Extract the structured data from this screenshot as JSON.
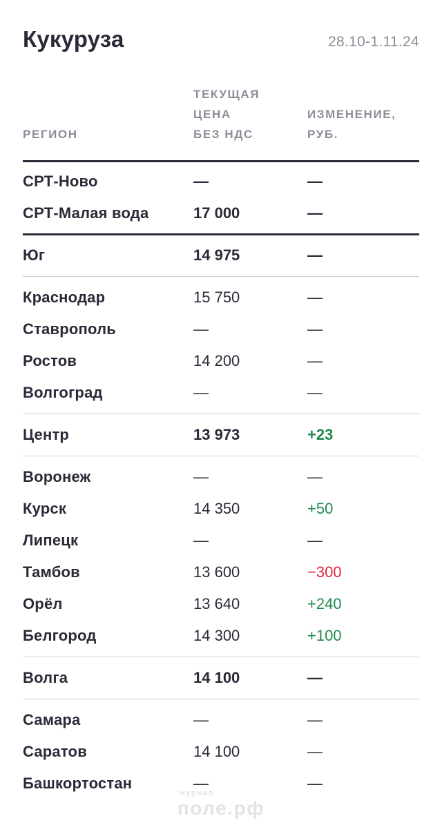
{
  "header": {
    "title": "Кукуруза",
    "date_range": "28.10-1.11.24"
  },
  "table": {
    "columns": [
      {
        "label": "РЕГИОН"
      },
      {
        "label": "ТЕКУЩАЯ\nЦЕНА\nБЕЗ НДС"
      },
      {
        "label": "ИЗМЕНЕНИЕ,\nРУБ."
      }
    ],
    "rows": [
      {
        "region": "СРТ-Ново",
        "price": "—",
        "change": "—",
        "strong": true,
        "divider_after": "none"
      },
      {
        "region": "СРТ-Малая вода",
        "price": "17 000",
        "change": "—",
        "strong": true,
        "divider_after": "dark"
      },
      {
        "region": "Юг",
        "price": "14 975",
        "change": "—",
        "strong": true,
        "divider_after": "light"
      },
      {
        "region": "Краснодар",
        "price": "15 750",
        "change": "—",
        "strong": false,
        "divider_after": "none"
      },
      {
        "region": "Ставрополь",
        "price": "—",
        "change": "—",
        "strong": false,
        "divider_after": "none"
      },
      {
        "region": "Ростов",
        "price": "14 200",
        "change": "—",
        "strong": false,
        "divider_after": "none"
      },
      {
        "region": "Волгоград",
        "price": "—",
        "change": "—",
        "strong": false,
        "divider_after": "light"
      },
      {
        "region": "Центр",
        "price": "13 973",
        "change": "+23",
        "change_color": "green",
        "strong": true,
        "divider_after": "light"
      },
      {
        "region": "Воронеж",
        "price": "—",
        "change": "—",
        "strong": false,
        "divider_after": "none"
      },
      {
        "region": "Курск",
        "price": "14 350",
        "change": "+50",
        "change_color": "green",
        "strong": false,
        "divider_after": "none"
      },
      {
        "region": "Липецк",
        "price": "—",
        "change": "—",
        "strong": false,
        "divider_after": "none"
      },
      {
        "region": "Тамбов",
        "price": "13 600",
        "change": "−300",
        "change_color": "red",
        "strong": false,
        "divider_after": "none"
      },
      {
        "region": "Орёл",
        "price": "13 640",
        "change": "+240",
        "change_color": "green",
        "strong": false,
        "divider_after": "none"
      },
      {
        "region": "Белгород",
        "price": "14 300",
        "change": "+100",
        "change_color": "green",
        "strong": false,
        "divider_after": "light"
      },
      {
        "region": "Волга",
        "price": "14 100",
        "change": "—",
        "strong": true,
        "divider_after": "light"
      },
      {
        "region": "Самара",
        "price": "—",
        "change": "—",
        "strong": false,
        "divider_after": "none"
      },
      {
        "region": "Саратов",
        "price": "14 100",
        "change": "—",
        "strong": false,
        "divider_after": "none"
      },
      {
        "region": "Башкортостан",
        "price": "—",
        "change": "—",
        "strong": false,
        "divider_after": "none"
      }
    ]
  },
  "watermark": {
    "line1": "журнал",
    "line2": "поле.рф"
  },
  "colors": {
    "text": "#2E2838",
    "muted": "#8F8B99",
    "green": "#1E8B4D",
    "red": "#E3233E",
    "divider_light": "#CFCED3",
    "divider_dark": "#2E2838",
    "watermark": "#E3E2E6"
  },
  "chart_data": {
    "type": "table",
    "title": "Кукуруза",
    "subtitle": "28.10-1.11.24",
    "columns": [
      "РЕГИОН",
      "ТЕКУЩАЯ ЦЕНА БЕЗ НДС",
      "ИЗМЕНЕНИЕ, РУБ."
    ],
    "rows": [
      [
        "СРТ-Ново",
        null,
        null
      ],
      [
        "СРТ-Малая вода",
        17000,
        null
      ],
      [
        "Юг",
        14975,
        null
      ],
      [
        "Краснодар",
        15750,
        null
      ],
      [
        "Ставрополь",
        null,
        null
      ],
      [
        "Ростов",
        14200,
        null
      ],
      [
        "Волгоград",
        null,
        null
      ],
      [
        "Центр",
        13973,
        23
      ],
      [
        "Воронеж",
        null,
        null
      ],
      [
        "Курск",
        14350,
        50
      ],
      [
        "Липецк",
        null,
        null
      ],
      [
        "Тамбов",
        13600,
        -300
      ],
      [
        "Орёл",
        13640,
        240
      ],
      [
        "Белгород",
        14300,
        100
      ],
      [
        "Волга",
        14100,
        null
      ],
      [
        "Самара",
        null,
        null
      ],
      [
        "Саратов",
        14100,
        null
      ],
      [
        "Башкортостан",
        null,
        null
      ]
    ]
  }
}
